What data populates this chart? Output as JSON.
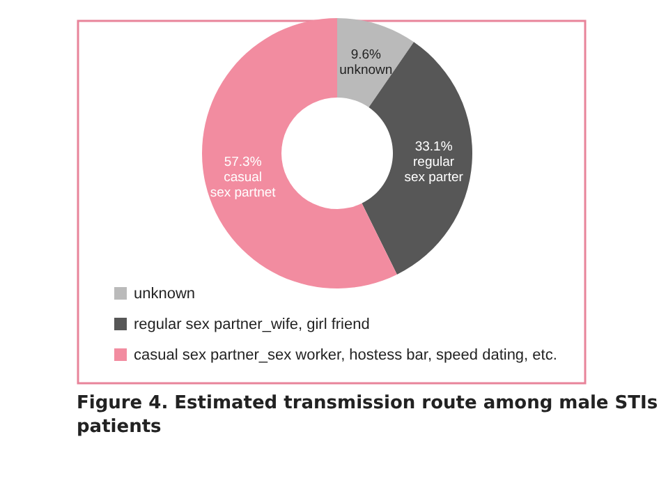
{
  "chart_data": {
    "type": "donut",
    "title": "Figure 4. Estimated transmission route among male STIs patients",
    "categories": [
      "unknown",
      "regular sex partner_wife, girl friend",
      "casual sex partner_sex worker, hostess bar, speed dating, etc."
    ],
    "values": [
      9.6,
      33.1,
      57.3
    ],
    "colors": [
      "#bababa",
      "#575757",
      "#f28ca0"
    ],
    "value_labels": [
      "9.6%\nunknown",
      "33.1%\nregular\nsex parter",
      "57.3%\ncasual\nsex partnet"
    ],
    "legend": "bottom"
  }
}
